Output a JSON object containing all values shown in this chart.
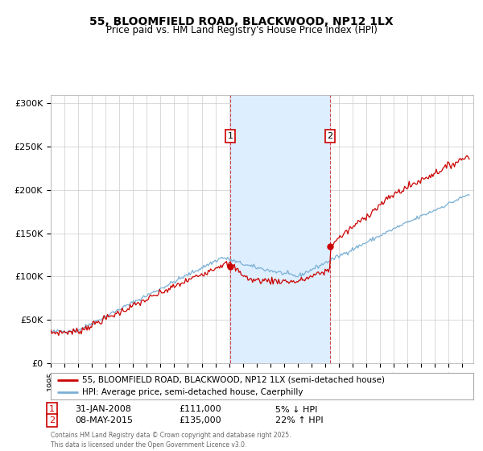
{
  "title_line1": "55, BLOOMFIELD ROAD, BLACKWOOD, NP12 1LX",
  "title_line2": "Price paid vs. HM Land Registry's House Price Index (HPI)",
  "ylim": [
    0,
    310000
  ],
  "yticks": [
    0,
    50000,
    100000,
    150000,
    200000,
    250000,
    300000
  ],
  "ytick_labels": [
    "£0",
    "£50K",
    "£100K",
    "£150K",
    "£200K",
    "£250K",
    "£300K"
  ],
  "x_start_year": 1995,
  "x_end_year": 2025,
  "sale1_date": 2008.08,
  "sale1_price": 111000,
  "sale1_text": "31-JAN-2008",
  "sale1_value_text": "£111,000",
  "sale1_hpi_text": "5% ↓ HPI",
  "sale2_date": 2015.36,
  "sale2_price": 135000,
  "sale2_text": "08-MAY-2015",
  "sale2_value_text": "£135,000",
  "sale2_hpi_text": "22% ↑ HPI",
  "legend_label1": "55, BLOOMFIELD ROAD, BLACKWOOD, NP12 1LX (semi-detached house)",
  "legend_label2": "HPI: Average price, semi-detached house, Caerphilly",
  "footer": "Contains HM Land Registry data © Crown copyright and database right 2025.\nThis data is licensed under the Open Government Licence v3.0.",
  "sale_color": "#cc0000",
  "hpi_color": "#7ab0d4",
  "shade_color": "#ddeeff",
  "background_color": "#ffffff",
  "grid_color": "#cccccc"
}
